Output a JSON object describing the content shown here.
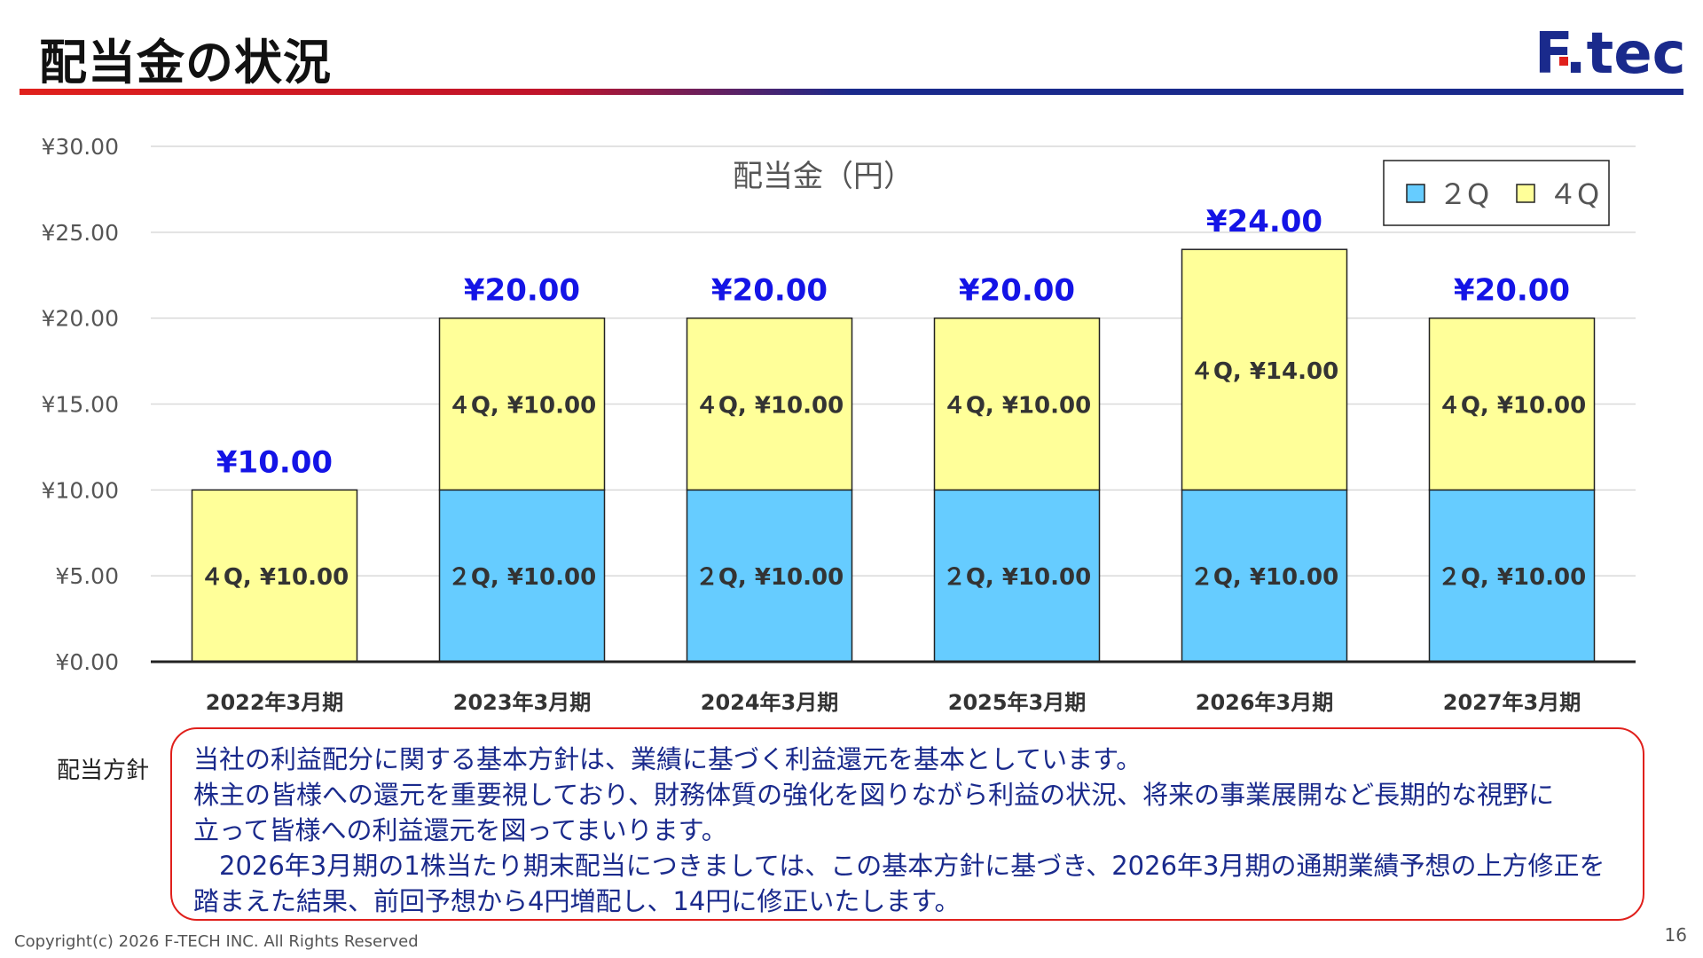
{
  "header": {
    "title": "配当金の状況",
    "logo_text": "F.tech",
    "logo_color": "#1a2a8c",
    "rule_colors": [
      "#e0201c",
      "#1a2a8c"
    ]
  },
  "chart_data": {
    "type": "bar",
    "stacked": true,
    "title": "配当金（円）",
    "categories": [
      "2022年3月期",
      "2023年3月期",
      "2024年3月期",
      "2025年3月期",
      "2026年3月期",
      "2027年3月期"
    ],
    "series": [
      {
        "name": "２Q",
        "color": "#66ccff",
        "values": [
          0,
          10,
          10,
          10,
          10,
          10
        ],
        "labels": [
          "",
          "２Q, ¥10.00",
          "２Q, ¥10.00",
          "２Q, ¥10.00",
          "２Q, ¥10.00",
          "２Q, ¥10.00"
        ]
      },
      {
        "name": "４Q",
        "color": "#ffff99",
        "values": [
          10,
          10,
          10,
          10,
          14,
          10
        ],
        "labels": [
          "４Q, ¥10.00",
          "４Q, ¥10.00",
          "４Q, ¥10.00",
          "４Q, ¥10.00",
          "４Q, ¥14.00",
          "４Q, ¥10.00"
        ]
      }
    ],
    "totals": [
      10,
      20,
      20,
      20,
      24,
      20
    ],
    "total_labels": [
      "¥10.00",
      "¥20.00",
      "¥20.00",
      "¥20.00",
      "¥24.00",
      "¥20.00"
    ],
    "total_label_color": "#1414e6",
    "yticks": [
      "¥0.00",
      "¥5.00",
      "¥10.00",
      "¥15.00",
      "¥20.00",
      "¥25.00",
      "¥30.00"
    ],
    "ylim": [
      0,
      30
    ],
    "grid": true,
    "legend_position": "top-right"
  },
  "policy": {
    "label": "配当方針",
    "lines": [
      "当社の利益配分に関する基本方針は、業績に基づく利益還元を基本としています。",
      "株主の皆様への還元を重要視しており、財務体質の強化を図りながら利益の状況、将来の事業展開など長期的な視野に",
      "立って皆様への利益還元を図ってまいります。",
      "　2026年3月期の1株当たり期末配当につきましては、この基本方針に基づき、2026年3月期の通期業績予想の上方修正を",
      "踏まえた結果、前回予想から4円増配し、14円に修正いたします。"
    ]
  },
  "footer": {
    "copyright": "Copyright(c) 2026 F-TECH INC. All Rights Reserved",
    "page_number": "16"
  }
}
